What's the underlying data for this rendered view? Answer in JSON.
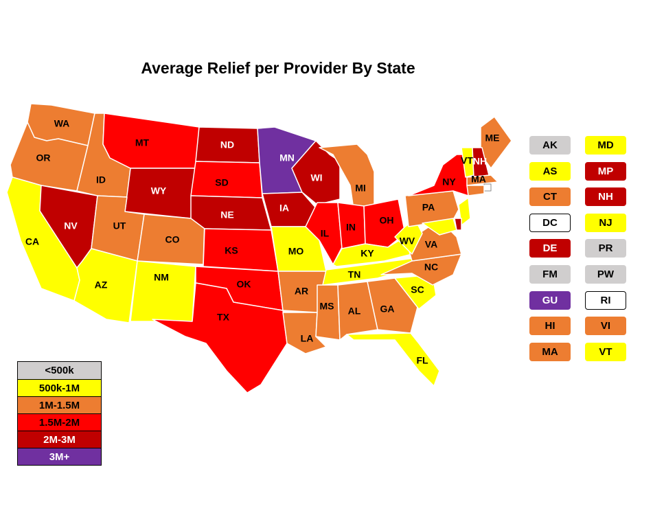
{
  "title": "Average Relief per Provider By State",
  "colors": {
    "lt500k": "#d0cece",
    "500k-1M": "#ffff00",
    "1M-1.5M": "#ed7d31",
    "1.5M-2M": "#ff0000",
    "2M-3M": "#c00000",
    "3M+": "#7030a0",
    "none": "#ffffff"
  },
  "legend": [
    {
      "label": "<500k",
      "color": "#d0cece",
      "text_color": "#000000"
    },
    {
      "label": "500k-1M",
      "color": "#ffff00",
      "text_color": "#000000"
    },
    {
      "label": "1M-1.5M",
      "color": "#ed7d31",
      "text_color": "#000000"
    },
    {
      "label": "1.5M-2M",
      "color": "#ff0000",
      "text_color": "#000000"
    },
    {
      "label": "2M-3M",
      "color": "#c00000",
      "text_color": "#ffffff"
    },
    {
      "label": "3M+",
      "color": "#7030a0",
      "text_color": "#ffffff"
    }
  ],
  "states": [
    {
      "abbr": "WA",
      "category": "1M-1.5M"
    },
    {
      "abbr": "OR",
      "category": "1M-1.5M"
    },
    {
      "abbr": "CA",
      "category": "500k-1M"
    },
    {
      "abbr": "NV",
      "category": "2M-3M"
    },
    {
      "abbr": "ID",
      "category": "1M-1.5M"
    },
    {
      "abbr": "MT",
      "category": "1.5M-2M"
    },
    {
      "abbr": "WY",
      "category": "2M-3M"
    },
    {
      "abbr": "UT",
      "category": "1M-1.5M"
    },
    {
      "abbr": "CO",
      "category": "1M-1.5M"
    },
    {
      "abbr": "AZ",
      "category": "500k-1M"
    },
    {
      "abbr": "NM",
      "category": "500k-1M"
    },
    {
      "abbr": "ND",
      "category": "2M-3M"
    },
    {
      "abbr": "SD",
      "category": "1.5M-2M"
    },
    {
      "abbr": "NE",
      "category": "2M-3M"
    },
    {
      "abbr": "KS",
      "category": "1.5M-2M"
    },
    {
      "abbr": "OK",
      "category": "1.5M-2M"
    },
    {
      "abbr": "TX",
      "category": "1.5M-2M"
    },
    {
      "abbr": "MN",
      "category": "3M+"
    },
    {
      "abbr": "IA",
      "category": "2M-3M"
    },
    {
      "abbr": "MO",
      "category": "500k-1M"
    },
    {
      "abbr": "AR",
      "category": "1M-1.5M"
    },
    {
      "abbr": "LA",
      "category": "1M-1.5M"
    },
    {
      "abbr": "WI",
      "category": "2M-3M"
    },
    {
      "abbr": "IL",
      "category": "1.5M-2M"
    },
    {
      "abbr": "MI",
      "category": "1M-1.5M"
    },
    {
      "abbr": "IN",
      "category": "1.5M-2M"
    },
    {
      "abbr": "OH",
      "category": "1.5M-2M"
    },
    {
      "abbr": "KY",
      "category": "500k-1M"
    },
    {
      "abbr": "TN",
      "category": "500k-1M"
    },
    {
      "abbr": "MS",
      "category": "1M-1.5M"
    },
    {
      "abbr": "AL",
      "category": "1M-1.5M"
    },
    {
      "abbr": "GA",
      "category": "1M-1.5M"
    },
    {
      "abbr": "FL",
      "category": "500k-1M"
    },
    {
      "abbr": "SC",
      "category": "500k-1M"
    },
    {
      "abbr": "NC",
      "category": "1M-1.5M"
    },
    {
      "abbr": "VA",
      "category": "1M-1.5M"
    },
    {
      "abbr": "WV",
      "category": "500k-1M"
    },
    {
      "abbr": "PA",
      "category": "1M-1.5M"
    },
    {
      "abbr": "NY",
      "category": "1.5M-2M"
    },
    {
      "abbr": "ME",
      "category": "1M-1.5M"
    },
    {
      "abbr": "VT",
      "category": "500k-1M"
    },
    {
      "abbr": "NH",
      "category": "2M-3M"
    },
    {
      "abbr": "MA",
      "category": "1M-1.5M"
    },
    {
      "abbr": "RI",
      "category": "none"
    },
    {
      "abbr": "CT",
      "category": "1M-1.5M"
    },
    {
      "abbr": "NJ",
      "category": "500k-1M"
    },
    {
      "abbr": "DE",
      "category": "2M-3M"
    },
    {
      "abbr": "MD",
      "category": "500k-1M"
    }
  ],
  "tiles": [
    {
      "abbr": "AK",
      "category": "lt500k"
    },
    {
      "abbr": "MD",
      "category": "500k-1M"
    },
    {
      "abbr": "AS",
      "category": "500k-1M"
    },
    {
      "abbr": "MP",
      "category": "2M-3M"
    },
    {
      "abbr": "CT",
      "category": "1M-1.5M"
    },
    {
      "abbr": "NH",
      "category": "2M-3M"
    },
    {
      "abbr": "DC",
      "category": "none"
    },
    {
      "abbr": "NJ",
      "category": "500k-1M"
    },
    {
      "abbr": "DE",
      "category": "2M-3M"
    },
    {
      "abbr": "PR",
      "category": "lt500k"
    },
    {
      "abbr": "FM",
      "category": "lt500k"
    },
    {
      "abbr": "PW",
      "category": "lt500k"
    },
    {
      "abbr": "GU",
      "category": "3M+"
    },
    {
      "abbr": "RI",
      "category": "none"
    },
    {
      "abbr": "HI",
      "category": "1M-1.5M"
    },
    {
      "abbr": "VI",
      "category": "1M-1.5M"
    },
    {
      "abbr": "MA",
      "category": "1M-1.5M"
    },
    {
      "abbr": "VT",
      "category": "500k-1M"
    }
  ]
}
